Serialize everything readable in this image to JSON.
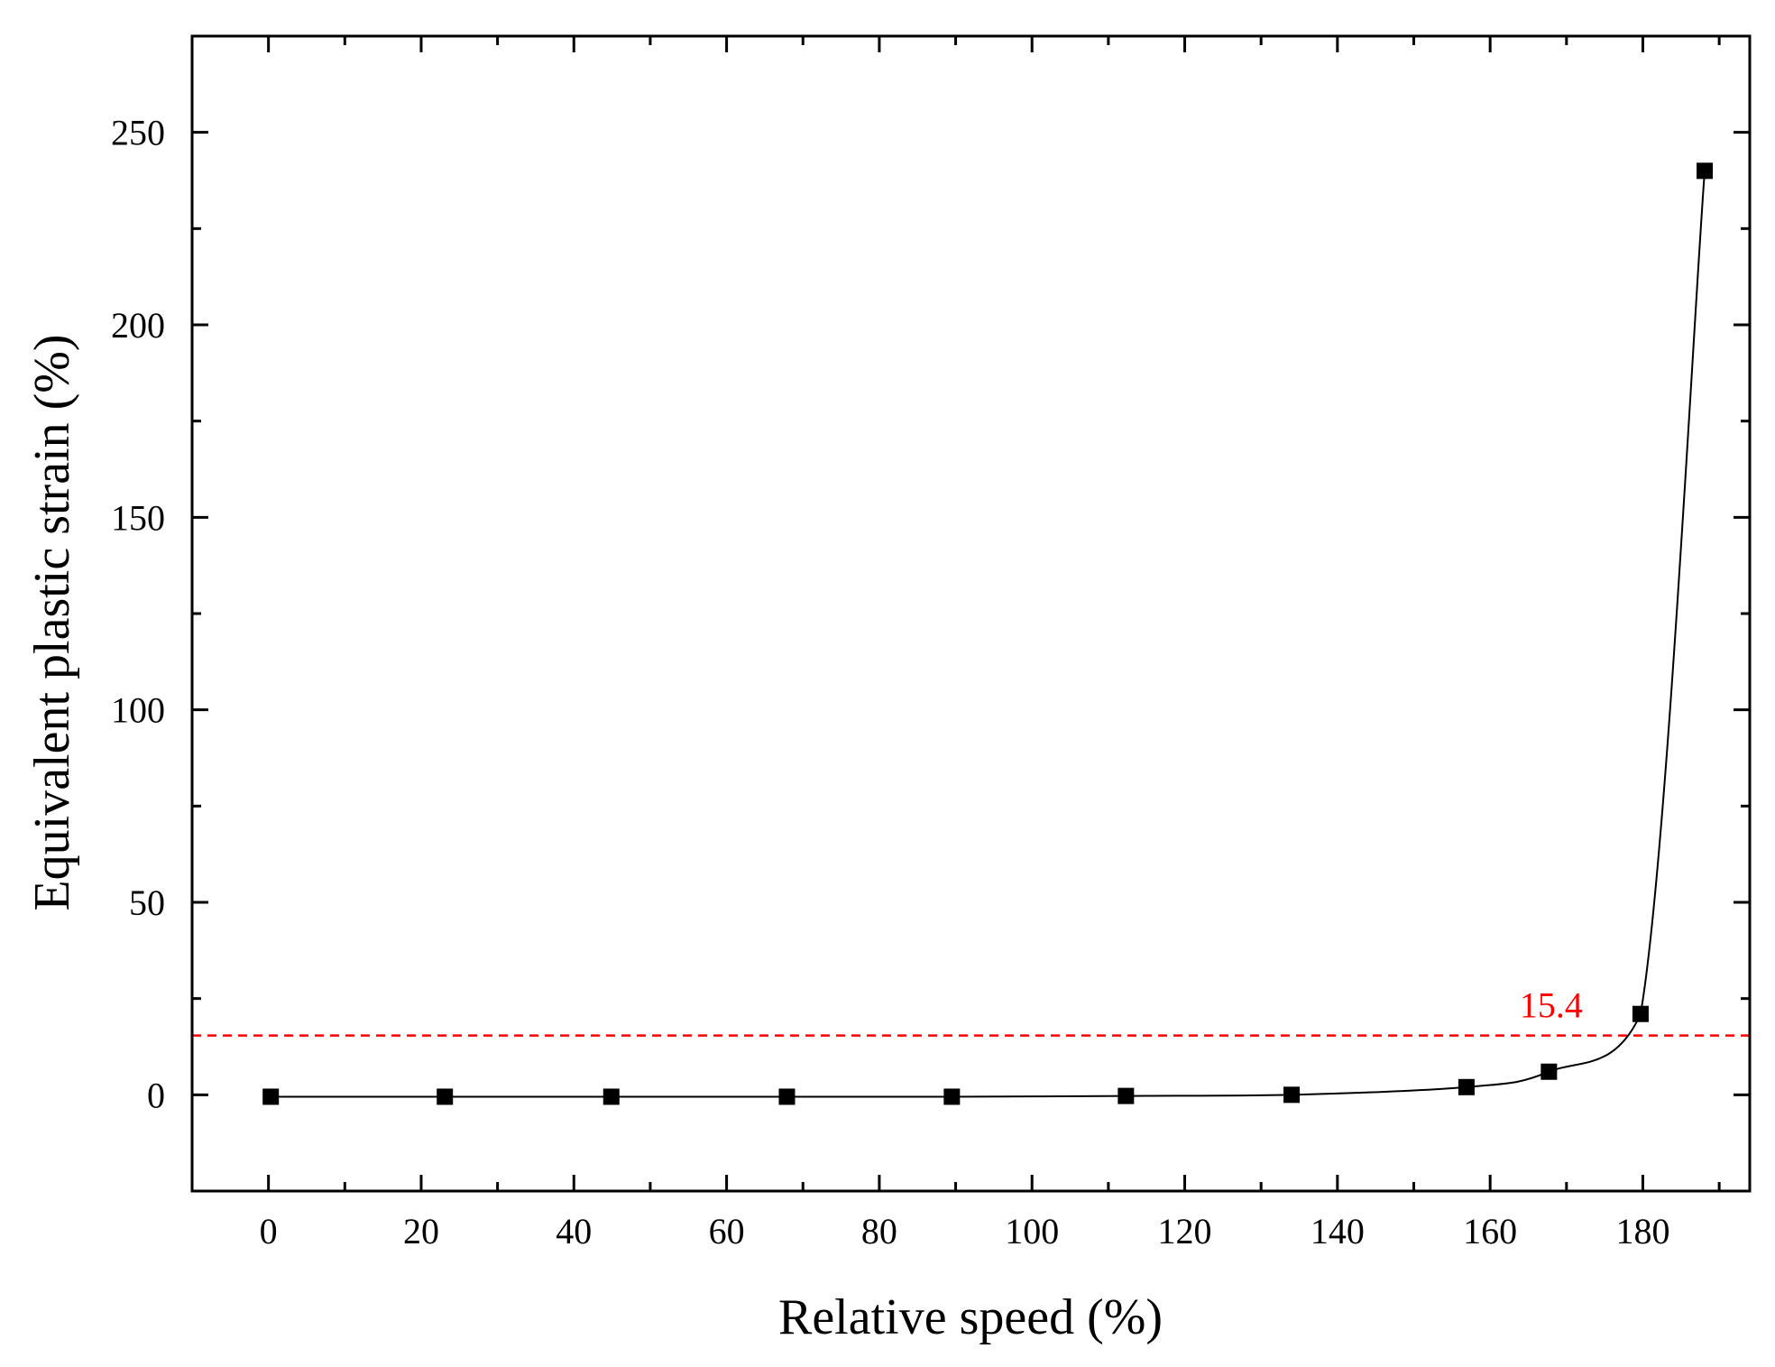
{
  "chart_data": {
    "type": "line",
    "title": "",
    "xlabel": "Relative speed (%)",
    "ylabel": "Equivalent plastic strain (%)",
    "xlim": [
      -10,
      194
    ],
    "ylim": [
      -25,
      275
    ],
    "xticks": [
      0,
      20,
      40,
      60,
      80,
      100,
      120,
      140,
      160,
      180
    ],
    "xtick_labels": [
      "0",
      "20",
      "40",
      "60",
      "80",
      "100",
      "120",
      "140",
      "160",
      "180"
    ],
    "yticks": [
      0,
      50,
      100,
      150,
      200,
      250
    ],
    "ytick_labels": [
      "0",
      "50",
      "100",
      "150",
      "200",
      "250"
    ],
    "grid": false,
    "marker": "square",
    "series": [
      {
        "x": [
          0.3,
          23.1,
          44.9,
          67.9,
          89.5,
          112.3,
          134,
          156.9,
          167.7,
          179.7,
          188.1
        ],
        "y": [
          -0.5,
          -0.5,
          -0.5,
          -0.5,
          -0.5,
          -0.3,
          0,
          2,
          6,
          21,
          240
        ]
      }
    ],
    "reference_line": {
      "y": 15.4,
      "label": "15.4",
      "color": "#ff0000",
      "style": "dashed"
    }
  }
}
